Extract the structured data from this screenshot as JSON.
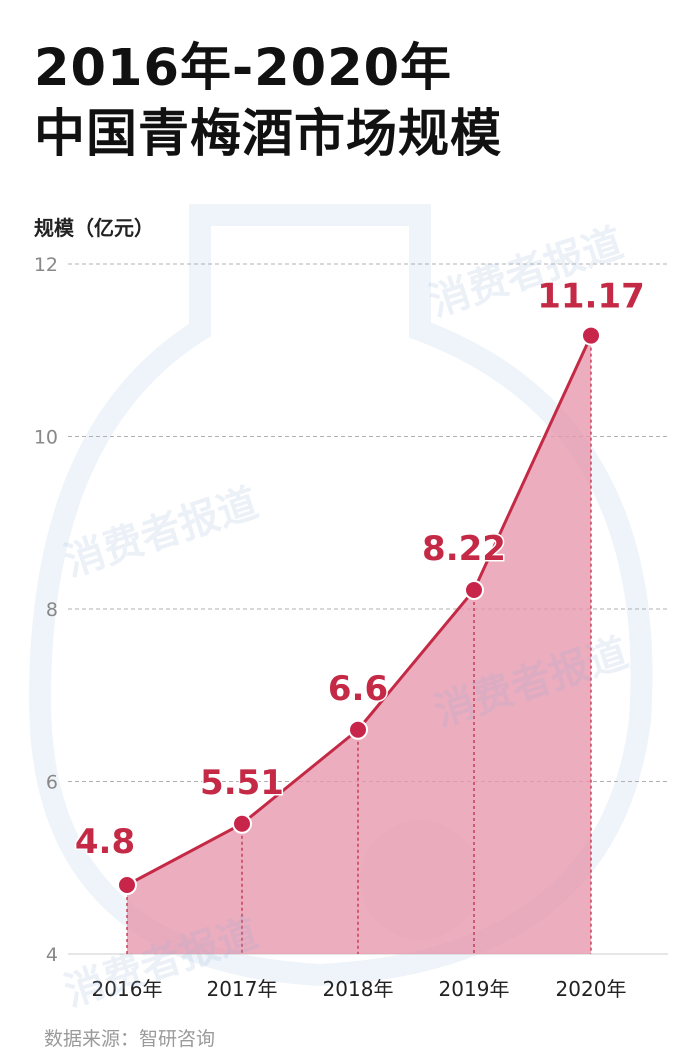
{
  "title_lines": [
    "2016年-2020年",
    "中国青梅酒市场规模"
  ],
  "source": "数据来源：智研咨询",
  "watermark": "消费者报道",
  "colors": {
    "line": "#c42a46",
    "marker": "#c8254a",
    "fill": "#e796ac",
    "label": "#c42a46",
    "grid": "#b0b0b0",
    "axis_text": "#222222"
  },
  "chart_data": {
    "type": "area",
    "title": "2016年-2020年中国青梅酒市场规模",
    "ylabel": "规模（亿元）",
    "categories": [
      "2016年",
      "2017年",
      "2018年",
      "2019年",
      "2020年"
    ],
    "values": [
      4.8,
      5.51,
      6.6,
      8.22,
      11.17
    ],
    "value_labels": [
      "4.8",
      "5.51",
      "6.6",
      "8.22",
      "11.17"
    ],
    "yticks": [
      4,
      6,
      8,
      10,
      12
    ],
    "ylim": [
      4,
      12
    ],
    "grid": "horizontal dashed"
  }
}
